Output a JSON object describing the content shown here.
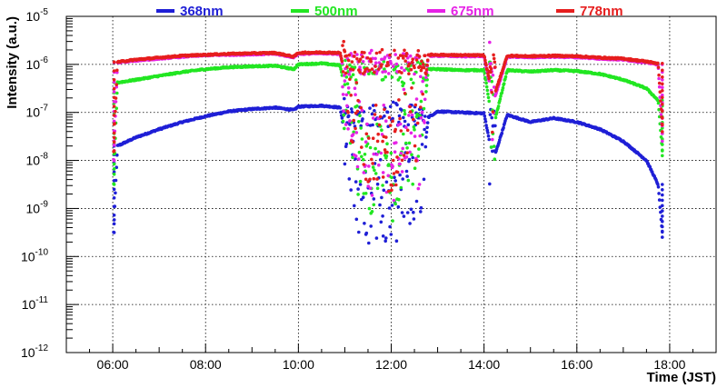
{
  "chart_data": {
    "type": "scatter",
    "title": "",
    "xlabel": "Time (JST)",
    "ylabel": "Intensity (a.u.)",
    "y_scale": "log",
    "xlim": [
      5.0,
      19.0
    ],
    "ylim_exponent": [
      -12,
      -5
    ],
    "grid": true,
    "legend_position": "top",
    "x_ticks": [
      {
        "value": 6,
        "label": "06:00"
      },
      {
        "value": 8,
        "label": "08:00"
      },
      {
        "value": 10,
        "label": "10:00"
      },
      {
        "value": 12,
        "label": "12:00"
      },
      {
        "value": 14,
        "label": "14:00"
      },
      {
        "value": 16,
        "label": "16:00"
      },
      {
        "value": 18,
        "label": "18:00"
      }
    ],
    "y_ticks": [
      {
        "exponent": -12,
        "base": "10",
        "exp": "-12"
      },
      {
        "exponent": -11,
        "base": "10",
        "exp": "-11"
      },
      {
        "exponent": -10,
        "base": "10",
        "exp": "-10"
      },
      {
        "exponent": -9,
        "base": "10",
        "exp": "-9"
      },
      {
        "exponent": -8,
        "base": "10",
        "exp": "-8"
      },
      {
        "exponent": -7,
        "base": "10",
        "exp": "-7"
      },
      {
        "exponent": -6,
        "base": "10",
        "exp": "-6"
      },
      {
        "exponent": -5,
        "base": "10",
        "exp": "-5"
      }
    ],
    "series": [
      {
        "name": "368nm",
        "color": "#1f1fd6",
        "x": [
          6.02,
          6.1,
          6.5,
          7.0,
          7.5,
          8.0,
          8.5,
          9.0,
          9.5,
          9.9,
          10.0,
          10.5,
          10.9,
          11.2,
          11.5,
          11.8,
          12.0,
          12.3,
          12.6,
          12.8,
          13.0,
          13.5,
          14.0,
          14.2,
          14.5,
          15.0,
          15.5,
          16.0,
          16.5,
          17.0,
          17.5,
          17.75,
          17.85
        ],
        "logy": [
          -9.5,
          -7.7,
          -7.52,
          -7.35,
          -7.2,
          -7.08,
          -6.98,
          -6.93,
          -6.9,
          -6.95,
          -6.88,
          -6.86,
          -6.9,
          -8.5,
          -8.9,
          -8.7,
          -9.2,
          -8.3,
          -8.8,
          -7.1,
          -6.98,
          -7.0,
          -7.02,
          -8.0,
          -7.05,
          -7.2,
          -7.12,
          -7.2,
          -7.35,
          -7.6,
          -8.0,
          -8.5,
          -9.6
        ]
      },
      {
        "name": "500nm",
        "color": "#22e622",
        "x": [
          6.02,
          6.1,
          6.5,
          7.0,
          7.5,
          8.0,
          8.5,
          9.0,
          9.5,
          9.9,
          10.0,
          10.5,
          10.9,
          11.2,
          11.5,
          11.8,
          12.0,
          12.3,
          12.6,
          12.8,
          13.0,
          13.5,
          14.0,
          14.2,
          14.5,
          15.0,
          15.5,
          16.0,
          16.5,
          17.0,
          17.5,
          17.75,
          17.85
        ],
        "logy": [
          -8.5,
          -6.38,
          -6.32,
          -6.24,
          -6.16,
          -6.1,
          -6.06,
          -6.04,
          -6.03,
          -6.1,
          -6.0,
          -5.98,
          -6.02,
          -7.6,
          -8.3,
          -8.0,
          -8.5,
          -7.5,
          -8.0,
          -6.1,
          -6.1,
          -6.12,
          -6.12,
          -7.3,
          -6.12,
          -6.15,
          -6.12,
          -6.14,
          -6.2,
          -6.32,
          -6.5,
          -6.75,
          -7.9
        ]
      },
      {
        "name": "675nm",
        "color": "#e622e6",
        "x": [
          6.02,
          6.1,
          6.5,
          7.0,
          7.5,
          8.0,
          8.5,
          9.0,
          9.5,
          9.9,
          10.0,
          10.5,
          10.9,
          11.2,
          11.5,
          11.8,
          12.0,
          12.3,
          12.6,
          12.8,
          13.0,
          13.5,
          14.0,
          14.2,
          14.5,
          15.0,
          15.5,
          16.0,
          16.5,
          17.0,
          17.5,
          17.75,
          17.85
        ],
        "logy": [
          -8.0,
          -5.96,
          -5.92,
          -5.88,
          -5.84,
          -5.81,
          -5.8,
          -5.79,
          -5.78,
          -5.85,
          -5.78,
          -5.77,
          -5.78,
          -7.3,
          -7.9,
          -7.6,
          -8.2,
          -7.2,
          -7.7,
          -5.82,
          -5.82,
          -5.83,
          -5.83,
          -6.8,
          -5.84,
          -5.85,
          -5.84,
          -5.85,
          -5.88,
          -5.9,
          -5.96,
          -6.0,
          -7.6
        ]
      },
      {
        "name": "778nm",
        "color": "#e61e1e",
        "x": [
          6.02,
          6.1,
          6.5,
          7.0,
          7.5,
          8.0,
          8.5,
          9.0,
          9.5,
          9.9,
          10.0,
          10.5,
          10.9,
          11.2,
          11.5,
          11.8,
          12.0,
          12.3,
          12.6,
          12.8,
          13.0,
          13.5,
          14.0,
          14.2,
          14.5,
          15.0,
          15.5,
          16.0,
          16.5,
          17.0,
          17.5,
          17.75,
          17.85
        ],
        "logy": [
          -7.8,
          -5.95,
          -5.9,
          -5.86,
          -5.82,
          -5.8,
          -5.78,
          -5.77,
          -5.76,
          -5.84,
          -5.76,
          -5.75,
          -5.76,
          -7.0,
          -7.7,
          -7.4,
          -8.0,
          -7.0,
          -7.5,
          -5.8,
          -5.8,
          -5.81,
          -5.81,
          -6.7,
          -5.82,
          -5.83,
          -5.82,
          -5.83,
          -5.86,
          -5.88,
          -5.94,
          -5.98,
          -7.4
        ]
      }
    ]
  }
}
